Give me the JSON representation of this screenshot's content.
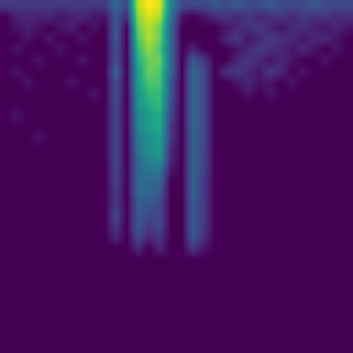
{
  "chart_data": {
    "type": "heatmap",
    "color": "viridis",
    "tick_labels": false,
    "values": [
      [
        0.15,
        0.15,
        0.15,
        0.15,
        0.15,
        0.15,
        0.15,
        0.15,
        0.15,
        0.15,
        0.3,
        0.2,
        0.8,
        0.9,
        0.85,
        0.4,
        0.2,
        0.2,
        0.2,
        0.25,
        0.2,
        0.25,
        0.2,
        0.2,
        0.25,
        0.2,
        0.2,
        0.2,
        0.25,
        0.2,
        0.2,
        0.2
      ],
      [
        0,
        0.08,
        0.1,
        0.08,
        0.1,
        0.05,
        0.08,
        0.1,
        0.05,
        0.05,
        0.25,
        0.1,
        0.75,
        0.85,
        0.8,
        0.35,
        0.05,
        0,
        0.05,
        0.1,
        0.15,
        0.1,
        0.15,
        0.1,
        0.12,
        0.15,
        0.1,
        0.15,
        0.12,
        0.15,
        0.1,
        0.12
      ],
      [
        0,
        0.05,
        0.08,
        0.05,
        0,
        0.05,
        0.08,
        0,
        0.05,
        0,
        0.25,
        0,
        0.7,
        0.8,
        0.7,
        0.3,
        0,
        0,
        0,
        0,
        0.05,
        0.1,
        0.12,
        0.15,
        0.1,
        0.05,
        0.1,
        0.12,
        0.08,
        0.05,
        0.1,
        0.05
      ],
      [
        0,
        0,
        0.05,
        0,
        0.05,
        0,
        0,
        0.05,
        0,
        0,
        0.25,
        0,
        0.65,
        0.8,
        0.7,
        0.3,
        0,
        0,
        0,
        0,
        0.1,
        0.15,
        0.05,
        0.1,
        0.15,
        0.12,
        0.1,
        0.05,
        0.1,
        0.1,
        0.05,
        0
      ],
      [
        0,
        0.05,
        0,
        0,
        0,
        0.05,
        0,
        0,
        0,
        0,
        0.22,
        0,
        0.6,
        0.75,
        0.65,
        0.3,
        0,
        0.1,
        0,
        0,
        0,
        0.05,
        0.1,
        0.15,
        0.12,
        0.1,
        0.05,
        0.1,
        0.05,
        0,
        0.05,
        0
      ],
      [
        0,
        0,
        0,
        0.05,
        0,
        0,
        0,
        0.05,
        0,
        0,
        0.22,
        0,
        0.55,
        0.7,
        0.7,
        0.3,
        0,
        0.25,
        0.15,
        0,
        0,
        0.1,
        0.15,
        0.1,
        0.05,
        0.1,
        0.05,
        0,
        0,
        0.05,
        0,
        0
      ],
      [
        0,
        0.05,
        0,
        0,
        0,
        0,
        0,
        0,
        0,
        0,
        0.3,
        0,
        0.5,
        0.7,
        0.65,
        0.3,
        0,
        0.3,
        0.2,
        0,
        0.12,
        0.15,
        0.1,
        0.05,
        0.15,
        0.1,
        0,
        0.05,
        0,
        0,
        0,
        0
      ],
      [
        0,
        0,
        0.05,
        0,
        0,
        0,
        0.05,
        0,
        0,
        0,
        0.22,
        0,
        0.5,
        0.65,
        0.65,
        0.25,
        0,
        0.3,
        0.2,
        0,
        0,
        0.05,
        0.1,
        0.05,
        0.05,
        0,
        0.05,
        0,
        0,
        0,
        0,
        0
      ],
      [
        0,
        0,
        0,
        0,
        0,
        0,
        0,
        0,
        0.05,
        0,
        0.22,
        0,
        0.45,
        0.6,
        0.6,
        0.25,
        0,
        0.3,
        0.2,
        0,
        0,
        0,
        0.05,
        0,
        0.05,
        0,
        0,
        0,
        0,
        0,
        0,
        0
      ],
      [
        0,
        0,
        0,
        0,
        0,
        0,
        0,
        0,
        0,
        0,
        0.2,
        0,
        0.45,
        0.55,
        0.6,
        0.2,
        0,
        0.3,
        0.2,
        0,
        0,
        0,
        0,
        0,
        0,
        0,
        0,
        0,
        0,
        0,
        0,
        0
      ],
      [
        0,
        0.05,
        0,
        0,
        0,
        0,
        0,
        0,
        0,
        0,
        0.2,
        0,
        0.4,
        0.5,
        0.55,
        0.2,
        0,
        0.3,
        0.2,
        0,
        0,
        0,
        0,
        0,
        0,
        0,
        0,
        0,
        0,
        0,
        0,
        0
      ],
      [
        0,
        0,
        0,
        0,
        0,
        0,
        0,
        0,
        0,
        0,
        0.2,
        0,
        0.4,
        0.5,
        0.55,
        0.15,
        0,
        0.3,
        0.2,
        0,
        0,
        0,
        0,
        0,
        0,
        0,
        0,
        0,
        0,
        0,
        0,
        0
      ],
      [
        0,
        0,
        0,
        0.05,
        0,
        0,
        0,
        0,
        0,
        0,
        0.2,
        0,
        0.35,
        0.45,
        0.5,
        0.15,
        0,
        0.28,
        0.2,
        0,
        0,
        0,
        0,
        0,
        0,
        0,
        0,
        0,
        0,
        0,
        0,
        0
      ],
      [
        0,
        0,
        0,
        0,
        0,
        0,
        0,
        0,
        0,
        0,
        0.2,
        0,
        0.35,
        0.45,
        0.5,
        0.1,
        0,
        0.28,
        0.18,
        0,
        0,
        0,
        0,
        0,
        0,
        0,
        0,
        0,
        0,
        0,
        0,
        0
      ],
      [
        0,
        0,
        0,
        0,
        0,
        0,
        0,
        0,
        0,
        0,
        0.2,
        0,
        0.3,
        0.4,
        0.45,
        0.1,
        0,
        0.28,
        0.18,
        0,
        0,
        0,
        0,
        0,
        0,
        0,
        0,
        0,
        0,
        0,
        0,
        0
      ],
      [
        0,
        0,
        0,
        0,
        0,
        0,
        0,
        0,
        0,
        0,
        0.18,
        0,
        0.3,
        0.35,
        0.35,
        0.05,
        0,
        0.28,
        0.18,
        0,
        0,
        0,
        0,
        0,
        0,
        0,
        0,
        0,
        0,
        0,
        0,
        0
      ],
      [
        0,
        0,
        0,
        0,
        0,
        0,
        0,
        0,
        0,
        0,
        0.18,
        0,
        0.3,
        0.3,
        0.3,
        0,
        0,
        0.28,
        0.15,
        0,
        0,
        0,
        0,
        0,
        0,
        0,
        0,
        0,
        0,
        0,
        0,
        0
      ],
      [
        0,
        0,
        0,
        0,
        0,
        0,
        0,
        0,
        0,
        0,
        0.15,
        0,
        0.3,
        0.3,
        0.25,
        0,
        0,
        0.28,
        0.15,
        0,
        0,
        0,
        0,
        0,
        0,
        0,
        0,
        0,
        0,
        0,
        0,
        0
      ],
      [
        0,
        0,
        0,
        0,
        0,
        0,
        0,
        0,
        0,
        0,
        0.15,
        0,
        0.25,
        0.25,
        0.2,
        0,
        0,
        0.25,
        0.15,
        0,
        0,
        0,
        0,
        0,
        0,
        0,
        0,
        0,
        0,
        0,
        0,
        0
      ],
      [
        0,
        0,
        0,
        0,
        0,
        0,
        0,
        0,
        0,
        0,
        0.2,
        0,
        0.25,
        0.2,
        0.2,
        0,
        0,
        0.25,
        0.15,
        0,
        0,
        0,
        0,
        0,
        0,
        0,
        0,
        0,
        0,
        0,
        0,
        0
      ],
      [
        0,
        0,
        0,
        0,
        0,
        0,
        0,
        0,
        0,
        0,
        0.15,
        0,
        0.25,
        0.15,
        0.2,
        0,
        0,
        0.25,
        0.15,
        0,
        0,
        0,
        0,
        0,
        0,
        0,
        0,
        0,
        0,
        0,
        0,
        0
      ],
      [
        0,
        0,
        0,
        0,
        0,
        0,
        0,
        0,
        0,
        0,
        0.1,
        0,
        0.2,
        0.1,
        0.15,
        0,
        0,
        0.25,
        0.12,
        0,
        0,
        0,
        0,
        0,
        0,
        0,
        0,
        0,
        0,
        0,
        0,
        0
      ],
      [
        0,
        0,
        0,
        0,
        0,
        0,
        0,
        0,
        0,
        0,
        0,
        0,
        0.1,
        0,
        0.1,
        0,
        0,
        0.15,
        0.05,
        0,
        0,
        0,
        0,
        0,
        0,
        0,
        0,
        0,
        0,
        0,
        0,
        0
      ],
      [
        0,
        0,
        0,
        0,
        0,
        0,
        0,
        0,
        0,
        0,
        0,
        0,
        0,
        0,
        0,
        0,
        0,
        0,
        0,
        0,
        0,
        0,
        0,
        0,
        0,
        0,
        0,
        0,
        0,
        0,
        0,
        0
      ],
      [
        0,
        0,
        0,
        0,
        0,
        0,
        0,
        0,
        0,
        0,
        0,
        0,
        0,
        0,
        0,
        0,
        0,
        0,
        0,
        0,
        0,
        0,
        0,
        0,
        0,
        0,
        0,
        0,
        0,
        0,
        0,
        0
      ],
      [
        0,
        0,
        0,
        0,
        0,
        0,
        0,
        0,
        0,
        0,
        0,
        0,
        0,
        0,
        0,
        0,
        0,
        0,
        0,
        0,
        0,
        0,
        0,
        0,
        0,
        0,
        0,
        0,
        0,
        0,
        0,
        0
      ],
      [
        0,
        0,
        0,
        0,
        0,
        0,
        0,
        0,
        0,
        0,
        0,
        0,
        0,
        0,
        0,
        0,
        0,
        0,
        0,
        0,
        0,
        0,
        0,
        0,
        0,
        0,
        0,
        0,
        0,
        0,
        0,
        0
      ],
      [
        0,
        0,
        0,
        0,
        0,
        0,
        0,
        0,
        0,
        0,
        0,
        0,
        0,
        0,
        0,
        0,
        0,
        0,
        0,
        0,
        0,
        0,
        0,
        0,
        0,
        0,
        0,
        0,
        0,
        0,
        0,
        0
      ],
      [
        0,
        0,
        0,
        0,
        0,
        0,
        0,
        0,
        0,
        0,
        0,
        0,
        0,
        0,
        0,
        0,
        0,
        0,
        0,
        0,
        0,
        0,
        0,
        0,
        0,
        0,
        0,
        0,
        0,
        0,
        0,
        0
      ],
      [
        0,
        0,
        0,
        0,
        0,
        0,
        0,
        0,
        0,
        0,
        0,
        0,
        0,
        0,
        0,
        0,
        0,
        0,
        0,
        0,
        0,
        0,
        0,
        0,
        0,
        0,
        0,
        0,
        0,
        0,
        0,
        0
      ],
      [
        0,
        0,
        0,
        0,
        0,
        0,
        0,
        0,
        0,
        0,
        0,
        0,
        0,
        0,
        0,
        0,
        0,
        0,
        0,
        0,
        0,
        0,
        0,
        0,
        0,
        0,
        0,
        0,
        0,
        0,
        0,
        0
      ],
      [
        0,
        0,
        0,
        0,
        0,
        0,
        0,
        0,
        0,
        0,
        0,
        0,
        0,
        0,
        0,
        0,
        0,
        0,
        0,
        0,
        0,
        0,
        0,
        0,
        0,
        0,
        0,
        0,
        0,
        0,
        0,
        0
      ]
    ]
  }
}
